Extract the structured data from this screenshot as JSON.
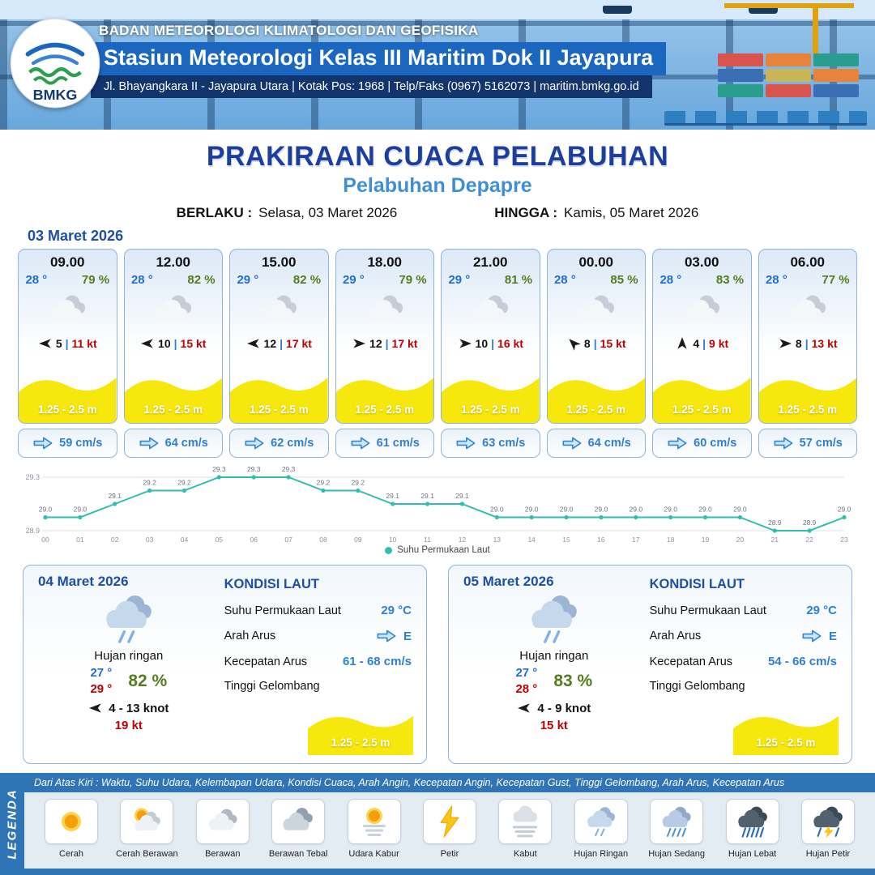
{
  "header": {
    "agency": "BADAN METEOROLOGI KLIMATOLOGI DAN GEOFISIKA",
    "station": "Stasiun Meteorologi Kelas III Maritim Dok II Jayapura",
    "address": "Jl. Bhayangkara II - Jayapura Utara | Kotak Pos: 1968 | Telp/Faks (0967) 5162073 | maritim.bmkg.go.id",
    "logo_text": "BMKG"
  },
  "title": {
    "main": "PRAKIRAAN CUACA PELABUHAN",
    "port": "Pelabuhan Depapre"
  },
  "validity": {
    "berlaku_label": "BERLAKU :",
    "berlaku_value": "Selasa, 03 Maret 2026",
    "hingga_label": "HINGGA :",
    "hingga_value": "Kamis, 05 Maret 2026"
  },
  "forecast": {
    "date": "03 Maret 2026",
    "wind_sep": "|",
    "cards": [
      {
        "time": "09.00",
        "temp": "28 °",
        "rh": "79 %",
        "icon": "cloudy",
        "wind_dir_deg": 180,
        "wind_speed": "5",
        "wind_gust": "11 kt",
        "wave": "1.25 - 2.5 m",
        "current": "59 cm/s"
      },
      {
        "time": "12.00",
        "temp": "28 °",
        "rh": "82 %",
        "icon": "cloudy",
        "wind_dir_deg": 180,
        "wind_speed": "10",
        "wind_gust": "15 kt",
        "wave": "1.25 - 2.5 m",
        "current": "64 cm/s"
      },
      {
        "time": "15.00",
        "temp": "29 °",
        "rh": "82 %",
        "icon": "cloudy",
        "wind_dir_deg": 180,
        "wind_speed": "12",
        "wind_gust": "17 kt",
        "wave": "1.25 - 2.5 m",
        "current": "62 cm/s"
      },
      {
        "time": "18.00",
        "temp": "29 °",
        "rh": "79 %",
        "icon": "cloudy",
        "wind_dir_deg": 0,
        "wind_speed": "12",
        "wind_gust": "17 kt",
        "wave": "1.25 - 2.5 m",
        "current": "61 cm/s"
      },
      {
        "time": "21.00",
        "temp": "29 °",
        "rh": "81 %",
        "icon": "cloudy",
        "wind_dir_deg": 0,
        "wind_speed": "10",
        "wind_gust": "16 kt",
        "wave": "1.25 - 2.5 m",
        "current": "63 cm/s"
      },
      {
        "time": "00.00",
        "temp": "28 °",
        "rh": "85 %",
        "icon": "cloudy",
        "wind_dir_deg": 225,
        "wind_speed": "8",
        "wind_gust": "15 kt",
        "wave": "1.25 - 2.5 m",
        "current": "64 cm/s"
      },
      {
        "time": "03.00",
        "temp": "28 °",
        "rh": "83 %",
        "icon": "cloudy",
        "wind_dir_deg": 270,
        "wind_speed": "4",
        "wind_gust": "9 kt",
        "wave": "1.25 - 2.5 m",
        "current": "60 cm/s"
      },
      {
        "time": "06.00",
        "temp": "28 °",
        "rh": "77 %",
        "icon": "cloudy",
        "wind_dir_deg": 0,
        "wind_speed": "8",
        "wind_gust": "13 kt",
        "wave": "1.25 - 2.5 m",
        "current": "57 cm/s"
      }
    ]
  },
  "chart_data": {
    "type": "line",
    "series_label": "Suhu Permukaan Laut",
    "x": [
      "00",
      "01",
      "02",
      "03",
      "04",
      "05",
      "06",
      "07",
      "08",
      "09",
      "10",
      "11",
      "12",
      "13",
      "14",
      "15",
      "16",
      "17",
      "18",
      "19",
      "20",
      "21",
      "22",
      "23"
    ],
    "values": [
      29.0,
      29.0,
      29.1,
      29.2,
      29.2,
      29.3,
      29.3,
      29.3,
      29.2,
      29.2,
      29.1,
      29.1,
      29.1,
      29.0,
      29.0,
      29.0,
      29.0,
      29.0,
      29.0,
      29.0,
      29.0,
      28.9,
      28.9,
      29.0
    ],
    "ylim": [
      28.9,
      29.3
    ],
    "yticks": [
      29.3,
      28.9
    ],
    "line_color": "#2fbfae",
    "xlabel": "",
    "ylabel": ""
  },
  "daily": [
    {
      "date": "04 Maret 2026",
      "icon": "rain-light",
      "condition": "Hujan ringan",
      "temp_min": "27 °",
      "temp_max": "29 °",
      "rh": "82 %",
      "wind_dir_deg": 180,
      "wind_range": "4 - 13 knot",
      "gust": "19 kt",
      "sea": {
        "heading": "KONDISI LAUT",
        "sst_label": "Suhu Permukaan Laut",
        "sst": "29 °C",
        "dir_label": "Arah Arus",
        "dir": "E",
        "speed_label": "Kecepatan Arus",
        "speed": "61 - 68 cm/s",
        "wave_label": "Tinggi Gelombang",
        "wave": "1.25 - 2.5 m"
      }
    },
    {
      "date": "05 Maret 2026",
      "icon": "rain-light",
      "condition": "Hujan ringan",
      "temp_min": "27 °",
      "temp_max": "28 °",
      "rh": "83 %",
      "wind_dir_deg": 180,
      "wind_range": "4 - 9 knot",
      "gust": "15 kt",
      "sea": {
        "heading": "KONDISI LAUT",
        "sst_label": "Suhu Permukaan Laut",
        "sst": "29 °C",
        "dir_label": "Arah Arus",
        "dir": "E",
        "speed_label": "Kecepatan Arus",
        "speed": "54 - 66 cm/s",
        "wave_label": "Tinggi Gelombang",
        "wave": "1.25 - 2.5 m"
      }
    }
  ],
  "legend": {
    "title": "LEGENDA",
    "description": "Dari Atas Kiri : Waktu, Suhu Udara, Kelembapan Udara, Kondisi Cuaca, Arah Angin, Kecepatan Angin, Kecepatan Gust, Tinggi Gelombang, Arah Arus, Kecepatan Arus",
    "items": [
      {
        "icon": "sun",
        "label": "Cerah"
      },
      {
        "icon": "sun-cloud",
        "label": "Cerah Berawan"
      },
      {
        "icon": "cloud",
        "label": "Berawan"
      },
      {
        "icon": "clouds",
        "label": "Berawan Tebal"
      },
      {
        "icon": "hazy-sun",
        "label": "Udara Kabur"
      },
      {
        "icon": "lightning",
        "label": "Petir"
      },
      {
        "icon": "fog",
        "label": "Kabut"
      },
      {
        "icon": "rain-light",
        "label": "Hujan Ringan"
      },
      {
        "icon": "rain-medium",
        "label": "Hujan Sedang"
      },
      {
        "icon": "rain-heavy",
        "label": "Hujan Lebat"
      },
      {
        "icon": "thunder-rain",
        "label": "Hujan Petir"
      }
    ]
  },
  "colors": {
    "primary_blue": "#1b4fa8",
    "accent_blue": "#2f7fd0",
    "humidity_green": "#537d1f",
    "gust_red": "#c00000",
    "wave_yellow": "#f6e70c",
    "sst_line": "#2fbfae",
    "legend_bar": "#2f74b5"
  }
}
